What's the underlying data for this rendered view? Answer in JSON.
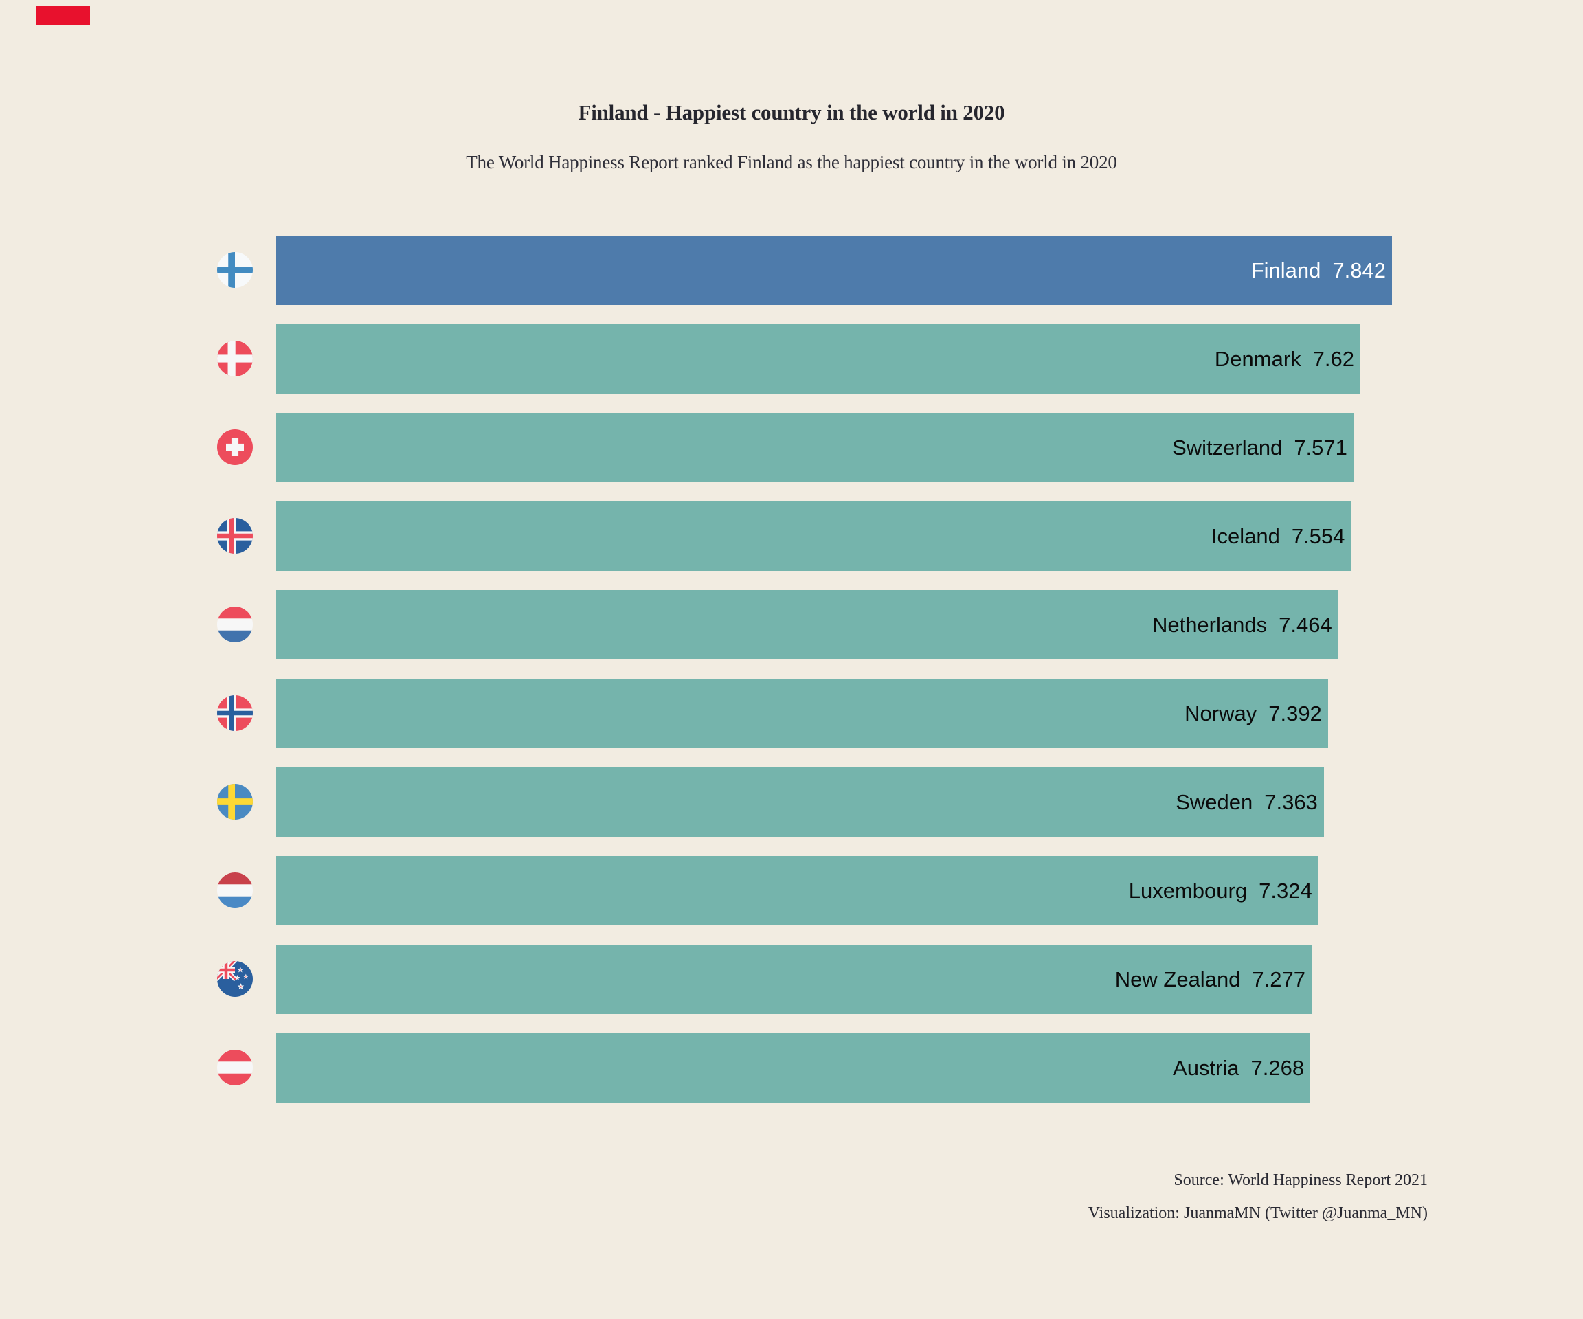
{
  "canvas": {
    "background": "#f2ece1"
  },
  "corner_marker": {
    "color": "#e8112d"
  },
  "header": {
    "title": "Finland - Happiest country in the world in 2020",
    "subtitle": "The World Happiness Report ranked Finland as the happiest country in the world in 2020",
    "title_color": "#26262e",
    "subtitle_color": "#2e2e38"
  },
  "chart_data": {
    "type": "bar",
    "orientation": "horizontal",
    "title": "Finland - Happiest country in the world in 2020",
    "categories": [
      "Finland",
      "Denmark",
      "Switzerland",
      "Iceland",
      "Netherlands",
      "Norway",
      "Sweden",
      "Luxembourg",
      "New Zealand",
      "Austria"
    ],
    "values": [
      7.842,
      7.62,
      7.571,
      7.554,
      7.464,
      7.392,
      7.363,
      7.324,
      7.277,
      7.268
    ],
    "xlim": [
      0,
      7.842
    ],
    "grid": false,
    "axes_visible": false,
    "legend": "none",
    "label_position": "inside-end",
    "highlight_color": "#4e7bab",
    "bar_color": "#75b4ac",
    "bars": [
      {
        "country": "Finland",
        "value": 7.842,
        "value_label": "7.842",
        "flag": "finland",
        "highlight": true,
        "label_color": "#ffffff"
      },
      {
        "country": "Denmark",
        "value": 7.62,
        "value_label": "7.62",
        "flag": "denmark",
        "highlight": false,
        "label_color": "#0b0b0b"
      },
      {
        "country": "Switzerland",
        "value": 7.571,
        "value_label": "7.571",
        "flag": "switzerland",
        "highlight": false,
        "label_color": "#0b0b0b"
      },
      {
        "country": "Iceland",
        "value": 7.554,
        "value_label": "7.554",
        "flag": "iceland",
        "highlight": false,
        "label_color": "#0b0b0b"
      },
      {
        "country": "Netherlands",
        "value": 7.464,
        "value_label": "7.464",
        "flag": "netherlands",
        "highlight": false,
        "label_color": "#0b0b0b"
      },
      {
        "country": "Norway",
        "value": 7.392,
        "value_label": "7.392",
        "flag": "norway",
        "highlight": false,
        "label_color": "#0b0b0b"
      },
      {
        "country": "Sweden",
        "value": 7.363,
        "value_label": "7.363",
        "flag": "sweden",
        "highlight": false,
        "label_color": "#0b0b0b"
      },
      {
        "country": "Luxembourg",
        "value": 7.324,
        "value_label": "7.324",
        "flag": "luxembourg",
        "highlight": false,
        "label_color": "#0b0b0b"
      },
      {
        "country": "New Zealand",
        "value": 7.277,
        "value_label": "7.277",
        "flag": "new-zealand",
        "highlight": false,
        "label_color": "#0b0b0b"
      },
      {
        "country": "Austria",
        "value": 7.268,
        "value_label": "7.268",
        "flag": "austria",
        "highlight": false,
        "label_color": "#0b0b0b"
      }
    ]
  },
  "flag_palette": {
    "red": "#ed4c5c",
    "dark_red": "#c8414b",
    "navy": "#2a5f9e",
    "blue": "#428bc1",
    "steel_blue": "#4173ad",
    "light_blue": "#4a89c5",
    "sweden_blue": "#4a8ac2",
    "yellow": "#fdd835",
    "white": "#f7f7f7",
    "finland_white": "#f7f9fa"
  },
  "footer": {
    "source": "Source: World Happiness Report 2021",
    "visualization": "Visualization: JuanmaMN (Twitter @Juanma_MN)",
    "text_color": "#2a2a33"
  }
}
